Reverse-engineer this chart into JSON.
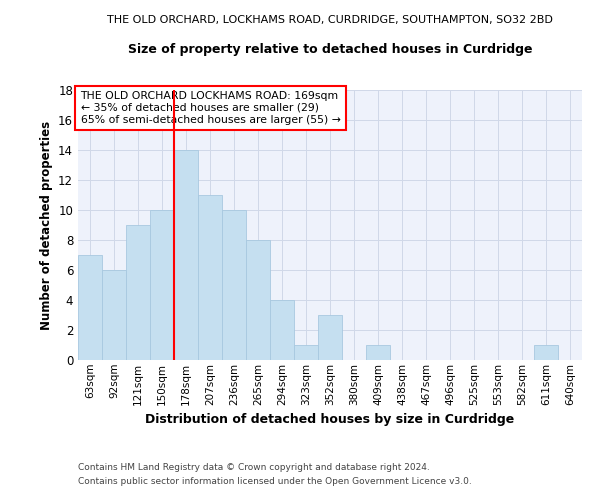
{
  "title": "THE OLD ORCHARD, LOCKHAMS ROAD, CURDRIDGE, SOUTHAMPTON, SO32 2BD",
  "subtitle": "Size of property relative to detached houses in Curdridge",
  "xlabel": "Distribution of detached houses by size in Curdridge",
  "ylabel": "Number of detached properties",
  "bar_color": "#c5dff0",
  "bar_edge_color": "#a8c8e0",
  "background_color": "#eef2fb",
  "grid_color": "#d0d8e8",
  "categories": [
    "63sqm",
    "92sqm",
    "121sqm",
    "150sqm",
    "178sqm",
    "207sqm",
    "236sqm",
    "265sqm",
    "294sqm",
    "323sqm",
    "352sqm",
    "380sqm",
    "409sqm",
    "438sqm",
    "467sqm",
    "496sqm",
    "525sqm",
    "553sqm",
    "582sqm",
    "611sqm",
    "640sqm"
  ],
  "values": [
    7,
    6,
    9,
    10,
    14,
    11,
    10,
    8,
    4,
    1,
    3,
    0,
    1,
    0,
    0,
    0,
    0,
    0,
    0,
    1,
    0
  ],
  "annotation_text": "THE OLD ORCHARD LOCKHAMS ROAD: 169sqm\n← 35% of detached houses are smaller (29)\n65% of semi-detached houses are larger (55) →",
  "footer_line1": "Contains HM Land Registry data © Crown copyright and database right 2024.",
  "footer_line2": "Contains public sector information licensed under the Open Government Licence v3.0.",
  "ylim": [
    0,
    18
  ],
  "yticks": [
    0,
    2,
    4,
    6,
    8,
    10,
    12,
    14,
    16,
    18
  ],
  "red_line_index": 4
}
